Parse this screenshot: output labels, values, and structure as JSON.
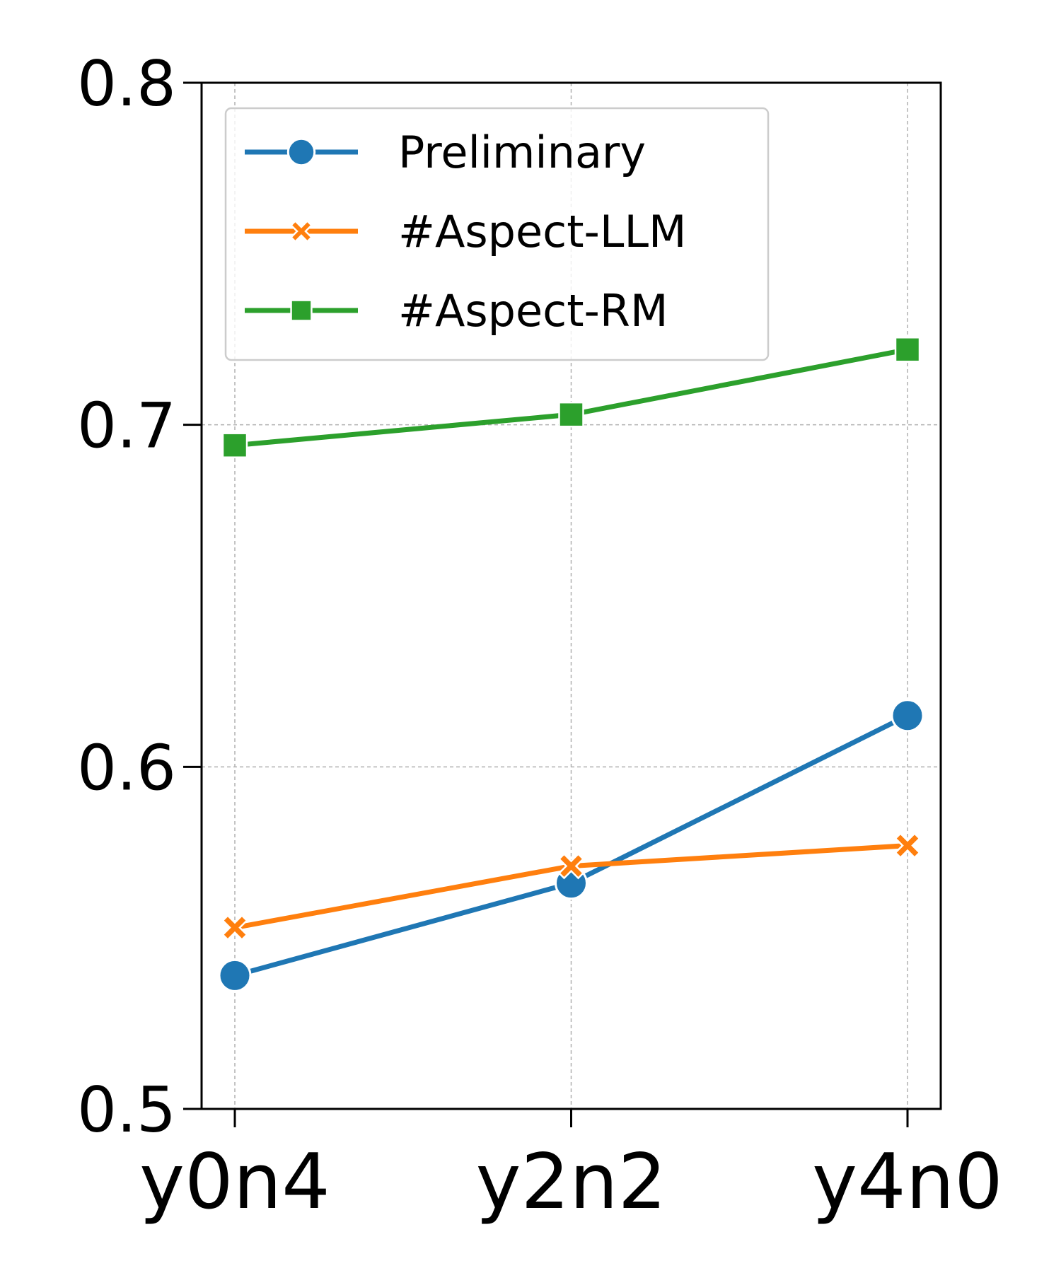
{
  "chart_data": {
    "type": "line",
    "categories": [
      "y0n4",
      "y2n2",
      "y4n0"
    ],
    "series": [
      {
        "name": "Preliminary",
        "values": [
          0.539,
          0.566,
          0.615
        ],
        "color": "#1f77b4",
        "marker": "circle"
      },
      {
        "name": "#Aspect-LLM",
        "values": [
          0.553,
          0.571,
          0.577
        ],
        "color": "#ff7f0e",
        "marker": "x"
      },
      {
        "name": "#Aspect-RM",
        "values": [
          0.694,
          0.703,
          0.722
        ],
        "color": "#2ca02c",
        "marker": "square"
      }
    ],
    "yticks": [
      "0.5",
      "0.6",
      "0.7",
      "0.8"
    ],
    "ylim": [
      0.5,
      0.8
    ],
    "grid": true,
    "legend": "top-left"
  }
}
